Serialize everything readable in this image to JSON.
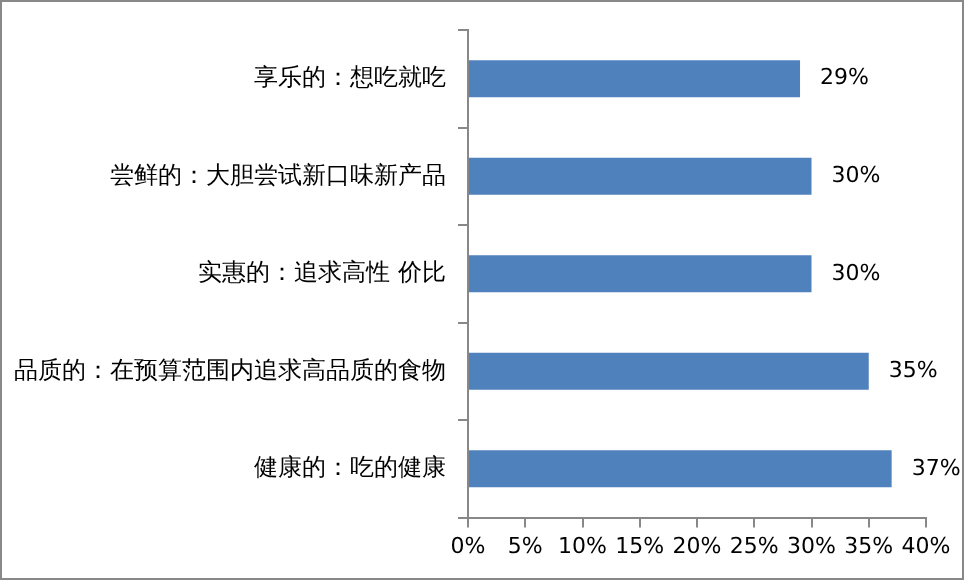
{
  "chart_data": {
    "type": "bar",
    "orientation": "horizontal",
    "categories": [
      "享乐的：想吃就吃",
      "尝鲜的：大胆尝试新口味新产品",
      "实惠的：追求高性 价比",
      "品质的：在预算范围内追求高品质的食物",
      "健康的：吃的健康"
    ],
    "values": [
      29,
      30,
      30,
      35,
      37
    ],
    "value_labels": [
      "29%",
      "30%",
      "30%",
      "35%",
      "37%"
    ],
    "color": "#4f81bd",
    "xlim": [
      0,
      40
    ],
    "xticks": [
      {
        "value": 0,
        "label": "0%"
      },
      {
        "value": 5,
        "label": "5%"
      },
      {
        "value": 10,
        "label": "10%"
      },
      {
        "value": 15,
        "label": "15%"
      },
      {
        "value": 20,
        "label": "20%"
      },
      {
        "value": 25,
        "label": "25%"
      },
      {
        "value": 30,
        "label": "30%"
      },
      {
        "value": 35,
        "label": "35%"
      },
      {
        "value": 40,
        "label": "40%"
      }
    ],
    "grid": false,
    "legend": false
  }
}
